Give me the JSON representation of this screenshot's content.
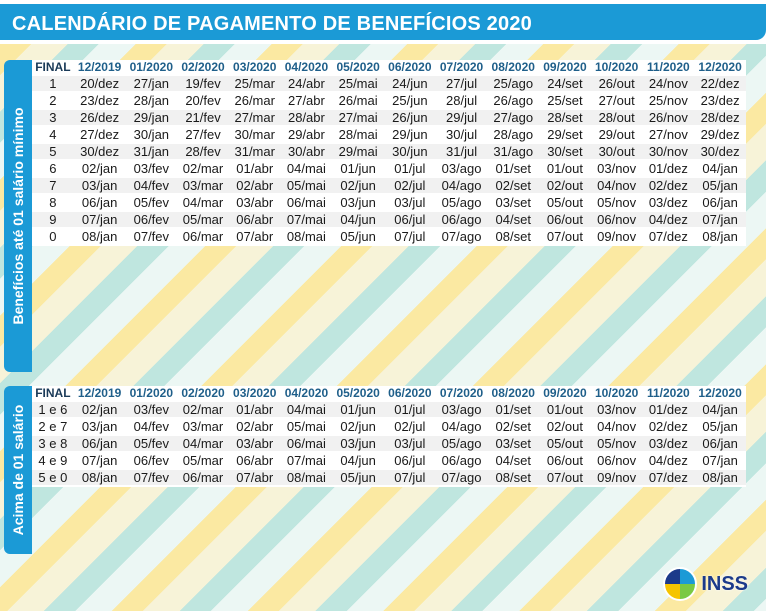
{
  "title": "CALENDÁRIO DE PAGAMENTO DE BENEFÍCIOS 2020",
  "logo_text": "INSS",
  "columns": [
    "FINAL",
    "12/2019",
    "01/2020",
    "02/2020",
    "03/2020",
    "04/2020",
    "05/2020",
    "06/2020",
    "07/2020",
    "08/2020",
    "09/2020",
    "10/2020",
    "11/2020",
    "12/2020"
  ],
  "section1": {
    "label": "Benefícios até 01 salário mínimo",
    "rows": [
      [
        "1",
        "20/dez",
        "27/jan",
        "19/fev",
        "25/mar",
        "24/abr",
        "25/mai",
        "24/jun",
        "27/jul",
        "25/ago",
        "24/set",
        "26/out",
        "24/nov",
        "22/dez"
      ],
      [
        "2",
        "23/dez",
        "28/jan",
        "20/fev",
        "26/mar",
        "27/abr",
        "26/mai",
        "25/jun",
        "28/jul",
        "26/ago",
        "25/set",
        "27/out",
        "25/nov",
        "23/dez"
      ],
      [
        "3",
        "26/dez",
        "29/jan",
        "21/fev",
        "27/mar",
        "28/abr",
        "27/mai",
        "26/jun",
        "29/jul",
        "27/ago",
        "28/set",
        "28/out",
        "26/nov",
        "28/dez"
      ],
      [
        "4",
        "27/dez",
        "30/jan",
        "27/fev",
        "30/mar",
        "29/abr",
        "28/mai",
        "29/jun",
        "30/jul",
        "28/ago",
        "29/set",
        "29/out",
        "27/nov",
        "29/dez"
      ],
      [
        "5",
        "30/dez",
        "31/jan",
        "28/fev",
        "31/mar",
        "30/abr",
        "29/mai",
        "30/jun",
        "31/jul",
        "31/ago",
        "30/set",
        "30/out",
        "30/nov",
        "30/dez"
      ],
      [
        "6",
        "02/jan",
        "03/fev",
        "02/mar",
        "01/abr",
        "04/mai",
        "01/jun",
        "01/jul",
        "03/ago",
        "01/set",
        "01/out",
        "03/nov",
        "01/dez",
        "04/jan"
      ],
      [
        "7",
        "03/jan",
        "04/fev",
        "03/mar",
        "02/abr",
        "05/mai",
        "02/jun",
        "02/jul",
        "04/ago",
        "02/set",
        "02/out",
        "04/nov",
        "02/dez",
        "05/jan"
      ],
      [
        "8",
        "06/jan",
        "05/fev",
        "04/mar",
        "03/abr",
        "06/mai",
        "03/jun",
        "03/jul",
        "05/ago",
        "03/set",
        "05/out",
        "05/nov",
        "03/dez",
        "06/jan"
      ],
      [
        "9",
        "07/jan",
        "06/fev",
        "05/mar",
        "06/abr",
        "07/mai",
        "04/jun",
        "06/jul",
        "06/ago",
        "04/set",
        "06/out",
        "06/nov",
        "04/dez",
        "07/jan"
      ],
      [
        "0",
        "08/jan",
        "07/fev",
        "06/mar",
        "07/abr",
        "08/mai",
        "05/jun",
        "07/jul",
        "07/ago",
        "08/set",
        "07/out",
        "09/nov",
        "07/dez",
        "08/jan"
      ]
    ]
  },
  "section2": {
    "label": "Acima de 01 salário",
    "rows": [
      [
        "1 e 6",
        "02/jan",
        "03/fev",
        "02/mar",
        "01/abr",
        "04/mai",
        "01/jun",
        "01/jul",
        "03/ago",
        "01/set",
        "01/out",
        "03/nov",
        "01/dez",
        "04/jan"
      ],
      [
        "2 e 7",
        "03/jan",
        "04/fev",
        "03/mar",
        "02/abr",
        "05/mai",
        "02/jun",
        "02/jul",
        "04/ago",
        "02/set",
        "02/out",
        "04/nov",
        "02/dez",
        "05/jan"
      ],
      [
        "3 e 8",
        "06/jan",
        "05/fev",
        "04/mar",
        "03/abr",
        "06/mai",
        "03/jun",
        "03/jul",
        "05/ago",
        "03/set",
        "05/out",
        "05/nov",
        "03/dez",
        "06/jan"
      ],
      [
        "4 e 9",
        "07/jan",
        "06/fev",
        "05/mar",
        "06/abr",
        "07/mai",
        "04/jun",
        "06/jul",
        "06/ago",
        "04/set",
        "06/out",
        "06/nov",
        "04/dez",
        "07/jan"
      ],
      [
        "5 e 0",
        "08/jan",
        "07/fev",
        "06/mar",
        "07/abr",
        "08/mai",
        "05/jun",
        "07/jul",
        "07/ago",
        "08/set",
        "07/out",
        "09/nov",
        "07/dez",
        "08/jan"
      ]
    ]
  },
  "colors": {
    "accent": "#1b9ad6",
    "header_text": "#1f5f8a",
    "stripe_yellow": "#fbe9a2",
    "stripe_teal": "#bfe6df",
    "logo_blue": "#1b3a8a"
  }
}
